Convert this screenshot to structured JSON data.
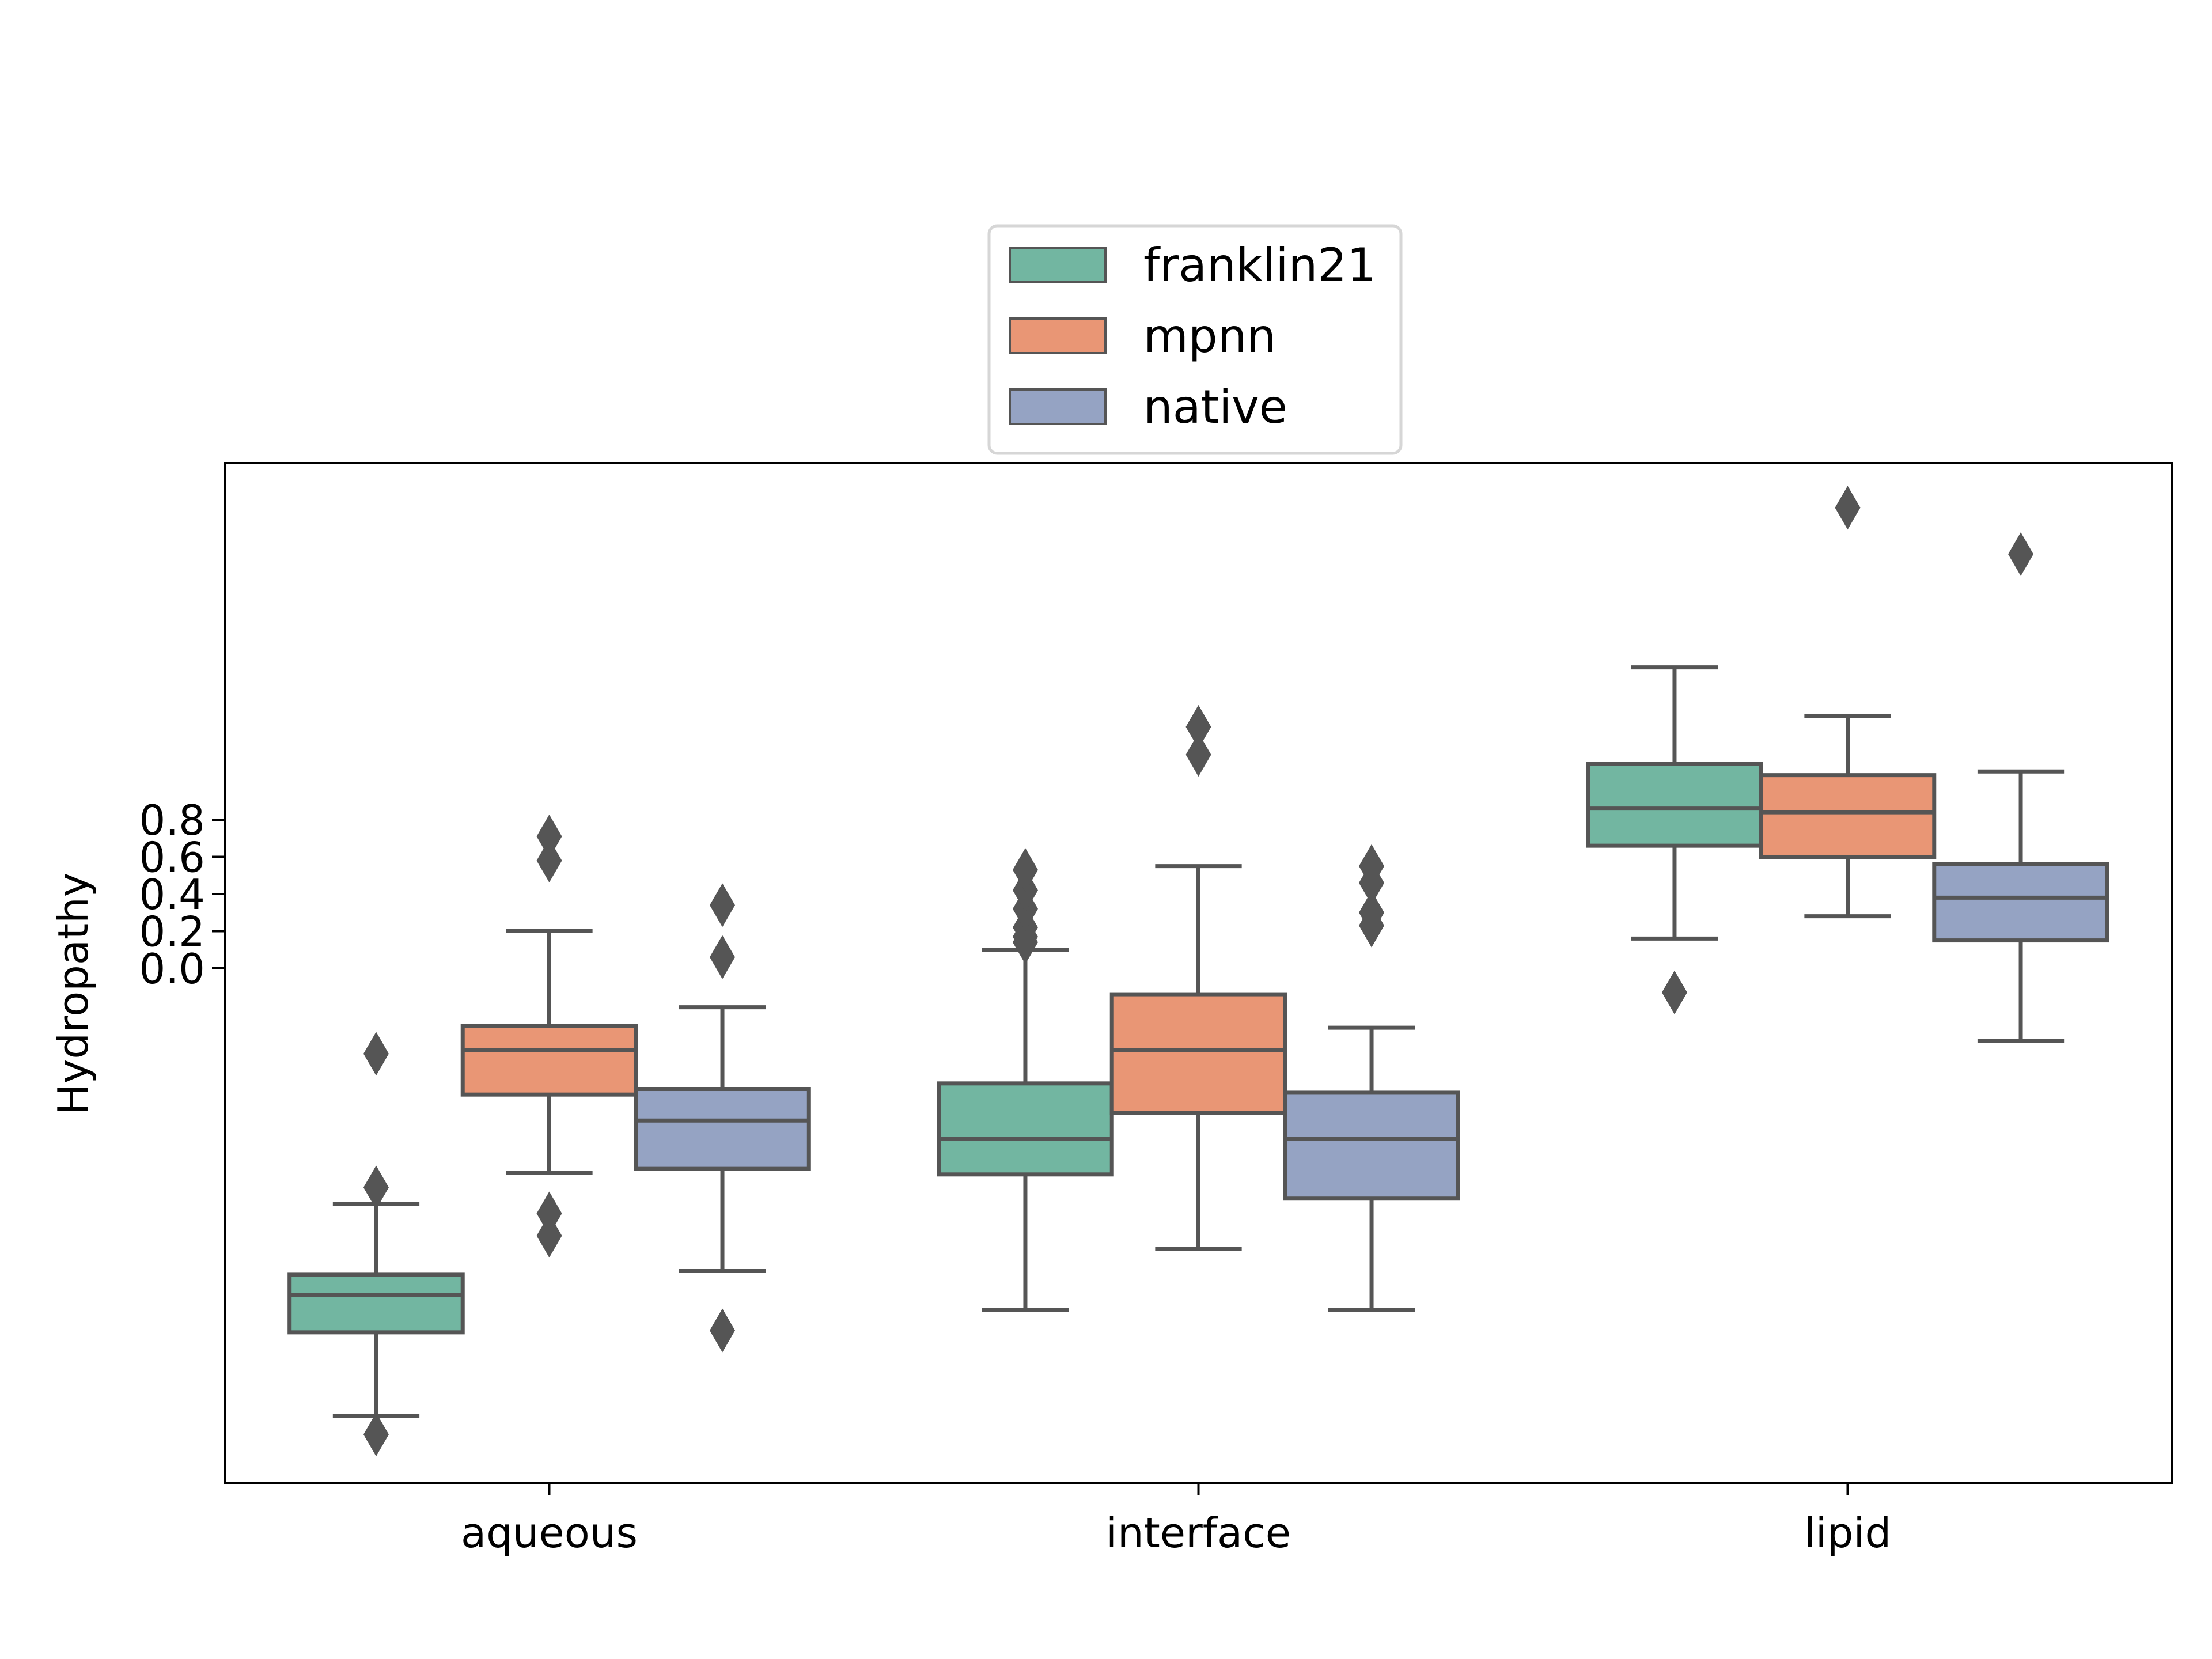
{
  "chart_data": {
    "type": "box",
    "xlabel": "",
    "ylabel": "Hydropathy",
    "categories": [
      "aqueous",
      "interface",
      "lipid"
    ],
    "yticks": [
      0.0,
      0.2,
      0.4,
      0.6,
      0.8
    ],
    "ytick_labels": [
      "0.0",
      "0.2",
      "0.4",
      "0.6",
      "0.8"
    ],
    "ylim": [
      -2.77,
      2.72
    ],
    "grid": false,
    "legend": {
      "placement": "top-center",
      "entries": [
        "franklin21",
        "mpnn",
        "native"
      ]
    },
    "series": [
      {
        "name": "franklin21",
        "color": "#72b6a1",
        "boxes": [
          {
            "category": "aqueous",
            "whisker_low": -2.41,
            "q1": -1.96,
            "median": -1.76,
            "q3": -1.65,
            "whisker_high": -1.27,
            "outliers": [
              -2.51,
              -1.18,
              -0.46
            ]
          },
          {
            "category": "interface",
            "whisker_low": -1.84,
            "q1": -1.11,
            "median": -0.92,
            "q3": -0.62,
            "whisker_high": 0.1,
            "outliers": [
              0.14,
              0.17,
              0.22,
              0.32,
              0.42,
              0.53
            ]
          },
          {
            "category": "lipid",
            "whisker_low": 0.16,
            "q1": 0.66,
            "median": 0.86,
            "q3": 1.1,
            "whisker_high": 1.62,
            "outliers": [
              -0.13
            ]
          }
        ]
      },
      {
        "name": "mpnn",
        "color": "#e99675",
        "boxes": [
          {
            "category": "aqueous",
            "whisker_low": -1.1,
            "q1": -0.68,
            "median": -0.44,
            "q3": -0.31,
            "whisker_high": 0.2,
            "outliers": [
              -1.44,
              -1.32,
              0.58,
              0.71
            ]
          },
          {
            "category": "interface",
            "whisker_low": -1.51,
            "q1": -0.78,
            "median": -0.44,
            "q3": -0.14,
            "whisker_high": 0.55,
            "outliers": [
              1.15,
              1.3
            ]
          },
          {
            "category": "lipid",
            "whisker_low": 0.28,
            "q1": 0.6,
            "median": 0.84,
            "q3": 1.04,
            "whisker_high": 1.36,
            "outliers": [
              2.48
            ]
          }
        ]
      },
      {
        "name": "native",
        "color": "#95a3c3",
        "boxes": [
          {
            "category": "aqueous",
            "whisker_low": -1.63,
            "q1": -1.08,
            "median": -0.82,
            "q3": -0.65,
            "whisker_high": -0.21,
            "outliers": [
              -1.95,
              0.06,
              0.34
            ]
          },
          {
            "category": "interface",
            "whisker_low": -1.84,
            "q1": -1.24,
            "median": -0.92,
            "q3": -0.67,
            "whisker_high": -0.32,
            "outliers": [
              0.23,
              0.3,
              0.46,
              0.55
            ]
          },
          {
            "category": "lipid",
            "whisker_low": -0.39,
            "q1": 0.15,
            "median": 0.38,
            "q3": 0.56,
            "whisker_high": 1.06,
            "outliers": [
              2.23
            ]
          }
        ]
      }
    ]
  }
}
